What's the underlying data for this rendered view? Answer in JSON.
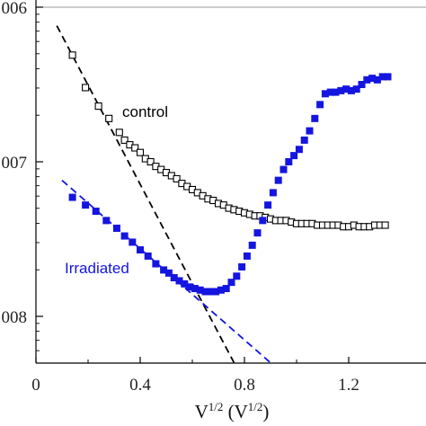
{
  "chart_data": {
    "type": "scatter",
    "xlabel_main": "V",
    "xlabel_sup": "1/2",
    "xlabel_unit_open": " (V",
    "xlabel_unit_sup": "1/2",
    "xlabel_unit_close": ")",
    "ylabel": "",
    "x_ticks": [
      {
        "value": 0,
        "label": "0"
      },
      {
        "value": 0.4,
        "label": "0.4"
      },
      {
        "value": 0.8,
        "label": "0.8"
      },
      {
        "value": 1.2,
        "label": "1.2"
      }
    ],
    "y_ticks": [
      {
        "value": -6,
        "label": "006"
      },
      {
        "value": -7,
        "label": "007"
      },
      {
        "value": -8,
        "label": "008"
      }
    ],
    "xlim": [
      0,
      1.4
    ],
    "ylim": [
      -8.3,
      -6.0
    ],
    "y_scale": "log",
    "grid": false,
    "series": [
      {
        "name": "control",
        "marker": "open-square",
        "color": "#000000",
        "x": [
          0.14,
          0.19,
          0.24,
          0.28,
          0.32,
          0.34,
          0.36,
          0.38,
          0.4,
          0.42,
          0.44,
          0.46,
          0.48,
          0.5,
          0.52,
          0.54,
          0.56,
          0.58,
          0.6,
          0.62,
          0.64,
          0.66,
          0.68,
          0.7,
          0.72,
          0.74,
          0.76,
          0.78,
          0.8,
          0.82,
          0.84,
          0.86,
          0.88,
          0.9,
          0.92,
          0.94,
          0.96,
          0.98,
          1.0,
          1.02,
          1.04,
          1.06,
          1.08,
          1.1,
          1.12,
          1.14,
          1.16,
          1.18,
          1.2,
          1.22,
          1.24,
          1.26,
          1.28,
          1.3,
          1.32,
          1.34
        ],
        "y": [
          -6.31,
          -6.52,
          -6.64,
          -6.72,
          -6.81,
          -6.86,
          -6.89,
          -6.91,
          -6.94,
          -6.98,
          -7.0,
          -7.03,
          -7.05,
          -7.07,
          -7.09,
          -7.11,
          -7.14,
          -7.16,
          -7.18,
          -7.2,
          -7.22,
          -7.24,
          -7.25,
          -7.27,
          -7.28,
          -7.3,
          -7.31,
          -7.32,
          -7.33,
          -7.34,
          -7.35,
          -7.35,
          -7.36,
          -7.37,
          -7.38,
          -7.38,
          -7.38,
          -7.39,
          -7.4,
          -7.4,
          -7.4,
          -7.4,
          -7.41,
          -7.41,
          -7.41,
          -7.41,
          -7.41,
          -7.42,
          -7.42,
          -7.41,
          -7.42,
          -7.42,
          -7.42,
          -7.41,
          -7.41,
          -7.41
        ]
      },
      {
        "name": "Irradiated",
        "marker": "filled-square",
        "color": "#1515e0",
        "x": [
          0.14,
          0.19,
          0.23,
          0.27,
          0.31,
          0.34,
          0.37,
          0.4,
          0.43,
          0.46,
          0.49,
          0.51,
          0.53,
          0.55,
          0.57,
          0.59,
          0.61,
          0.63,
          0.65,
          0.67,
          0.69,
          0.71,
          0.73,
          0.75,
          0.77,
          0.79,
          0.81,
          0.83,
          0.85,
          0.87,
          0.89,
          0.91,
          0.93,
          0.95,
          0.97,
          0.99,
          1.01,
          1.03,
          1.05,
          1.07,
          1.09,
          1.11,
          1.13,
          1.15,
          1.17,
          1.19,
          1.21,
          1.23,
          1.25,
          1.27,
          1.29,
          1.31,
          1.33,
          1.35
        ],
        "y": [
          -7.23,
          -7.28,
          -7.32,
          -7.38,
          -7.43,
          -7.48,
          -7.52,
          -7.57,
          -7.61,
          -7.66,
          -7.7,
          -7.72,
          -7.75,
          -7.77,
          -7.79,
          -7.81,
          -7.82,
          -7.83,
          -7.84,
          -7.84,
          -7.84,
          -7.83,
          -7.82,
          -7.78,
          -7.74,
          -7.68,
          -7.61,
          -7.54,
          -7.46,
          -7.38,
          -7.28,
          -7.2,
          -7.12,
          -7.05,
          -7.0,
          -6.96,
          -6.92,
          -6.86,
          -6.8,
          -6.72,
          -6.63,
          -6.56,
          -6.55,
          -6.55,
          -6.54,
          -6.53,
          -6.54,
          -6.53,
          -6.5,
          -6.47,
          -6.46,
          -6.47,
          -6.45,
          -6.45
        ]
      }
    ],
    "fit_lines": [
      {
        "color": "#000000",
        "x": [
          0.08,
          0.76
        ],
        "y": [
          -6.12,
          -8.3
        ]
      },
      {
        "color": "#1515e0",
        "x": [
          0.1,
          0.9
        ],
        "y": [
          -7.12,
          -8.3
        ]
      }
    ],
    "annotations": [
      {
        "text": "control",
        "color": "#000000"
      },
      {
        "text": "Irradiated",
        "color": "#1515e0"
      }
    ]
  }
}
